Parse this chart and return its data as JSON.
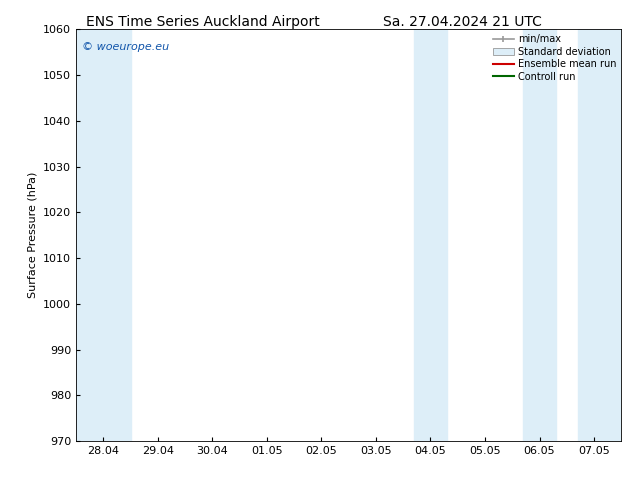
{
  "title_left": "ENS Time Series Auckland Airport",
  "title_right": "Sa. 27.04.2024 21 UTC",
  "ylabel": "Surface Pressure (hPa)",
  "ylim": [
    970,
    1060
  ],
  "yticks": [
    970,
    980,
    990,
    1000,
    1010,
    1020,
    1030,
    1040,
    1050,
    1060
  ],
  "x_tick_labels": [
    "28.04",
    "29.04",
    "30.04",
    "01.05",
    "02.05",
    "03.05",
    "04.05",
    "05.05",
    "06.05",
    "07.05"
  ],
  "x_tick_positions": [
    0,
    1,
    2,
    3,
    4,
    5,
    6,
    7,
    8,
    9
  ],
  "xlim": [
    -0.5,
    9.5
  ],
  "shaded_bands": [
    {
      "x_start": -0.5,
      "x_end": 0.5,
      "color": "#ddeef8"
    },
    {
      "x_start": 5.7,
      "x_end": 6.3,
      "color": "#ddeef8"
    },
    {
      "x_start": 7.7,
      "x_end": 8.3,
      "color": "#ddeef8"
    },
    {
      "x_start": 8.7,
      "x_end": 9.5,
      "color": "#ddeef8"
    }
  ],
  "watermark_text": "© woeurope.eu",
  "watermark_color": "#1155aa",
  "legend_minmax_color": "#999999",
  "legend_stddev_facecolor": "#ddeef8",
  "legend_stddev_edgecolor": "#999999",
  "legend_ensemble_color": "#cc0000",
  "legend_control_color": "#006600",
  "bg_color": "#ffffff",
  "plot_bg_color": "#ffffff",
  "title_fontsize": 10,
  "label_fontsize": 8,
  "tick_fontsize": 8,
  "watermark_fontsize": 8
}
